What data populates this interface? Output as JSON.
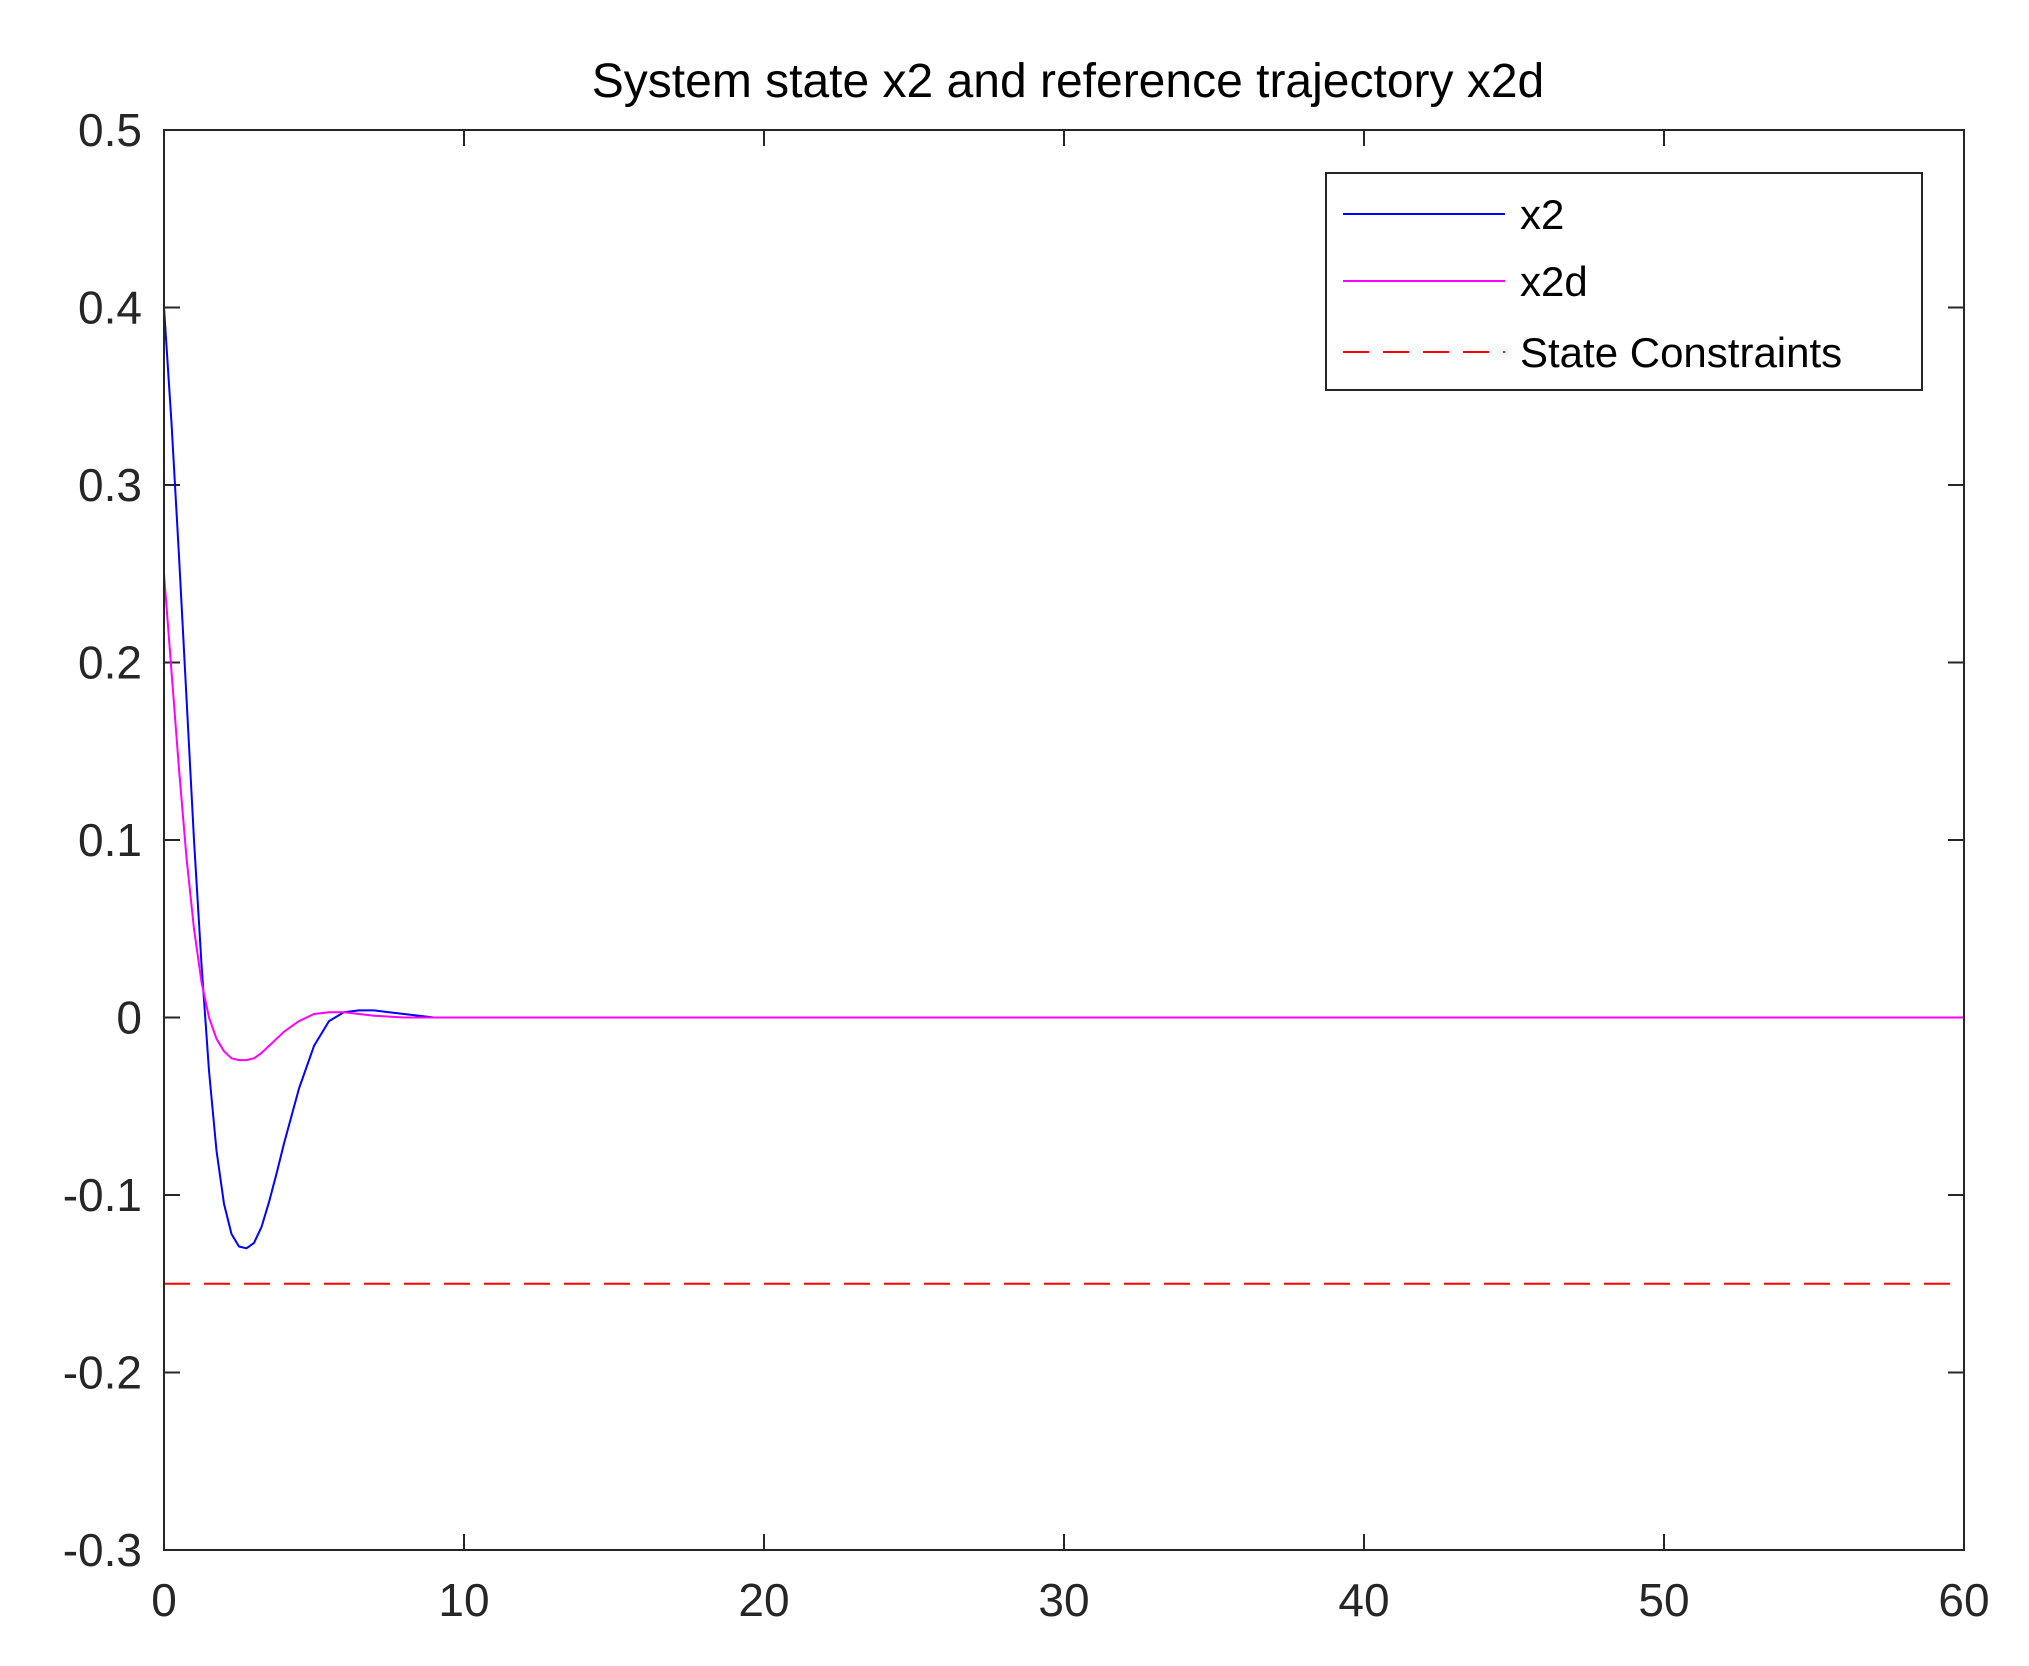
{
  "chart_data": {
    "type": "line",
    "title": "System state x2 and reference trajectory x2d",
    "xlabel": "",
    "ylabel": "",
    "xlim": [
      0,
      60
    ],
    "ylim": [
      -0.3,
      0.5
    ],
    "xticks": [
      0,
      10,
      20,
      30,
      40,
      50,
      60
    ],
    "xtick_labels": [
      "0",
      "10",
      "20",
      "30",
      "40",
      "50",
      "60"
    ],
    "yticks": [
      0.5,
      0.4,
      0.3,
      0.2,
      0.1,
      0,
      -0.1,
      -0.2,
      -0.3
    ],
    "ytick_labels": [
      "0.5",
      "0.4",
      "0.3",
      "0.2",
      "0.1",
      "0",
      "-0.1",
      "-0.2",
      "-0.3"
    ],
    "grid": false,
    "legend_position": "top-right",
    "series": [
      {
        "name": "x2",
        "color": "#0000ff",
        "style": "solid",
        "x": [
          0,
          0.25,
          0.5,
          0.75,
          1.0,
          1.25,
          1.5,
          1.75,
          2.0,
          2.25,
          2.5,
          2.75,
          3.0,
          3.25,
          3.5,
          3.75,
          4.0,
          4.5,
          5.0,
          5.5,
          6.0,
          6.5,
          7.0,
          7.5,
          8.0,
          8.5,
          9.0,
          10,
          20,
          30,
          40,
          50,
          60
        ],
        "y": [
          0.4,
          0.335,
          0.26,
          0.18,
          0.1,
          0.03,
          -0.03,
          -0.075,
          -0.105,
          -0.122,
          -0.129,
          -0.13,
          -0.127,
          -0.118,
          -0.104,
          -0.088,
          -0.071,
          -0.04,
          -0.016,
          -0.002,
          0.003,
          0.004,
          0.004,
          0.003,
          0.002,
          0.001,
          0.0,
          0.0,
          0.0,
          0.0,
          0.0,
          0.0,
          0.0
        ]
      },
      {
        "name": "x2d",
        "color": "#ff00ff",
        "style": "solid",
        "x": [
          0,
          0.25,
          0.5,
          0.75,
          1.0,
          1.25,
          1.5,
          1.75,
          2.0,
          2.25,
          2.5,
          2.75,
          3.0,
          3.25,
          3.5,
          3.75,
          4.0,
          4.5,
          5.0,
          5.5,
          6.0,
          6.5,
          7.0,
          8.0,
          9.0,
          10,
          20,
          30,
          40,
          50,
          60
        ],
        "y": [
          0.25,
          0.195,
          0.14,
          0.09,
          0.05,
          0.02,
          0.0,
          -0.012,
          -0.019,
          -0.023,
          -0.024,
          -0.024,
          -0.023,
          -0.02,
          -0.016,
          -0.012,
          -0.008,
          -0.002,
          0.002,
          0.003,
          0.003,
          0.002,
          0.001,
          0.0,
          0.0,
          0.0,
          0.0,
          0.0,
          0.0,
          0.0,
          0.0
        ]
      },
      {
        "name": "State Constraints",
        "color": "#ff0000",
        "style": "dashed",
        "x": [
          0,
          60
        ],
        "y": [
          -0.15,
          -0.15
        ]
      }
    ]
  }
}
